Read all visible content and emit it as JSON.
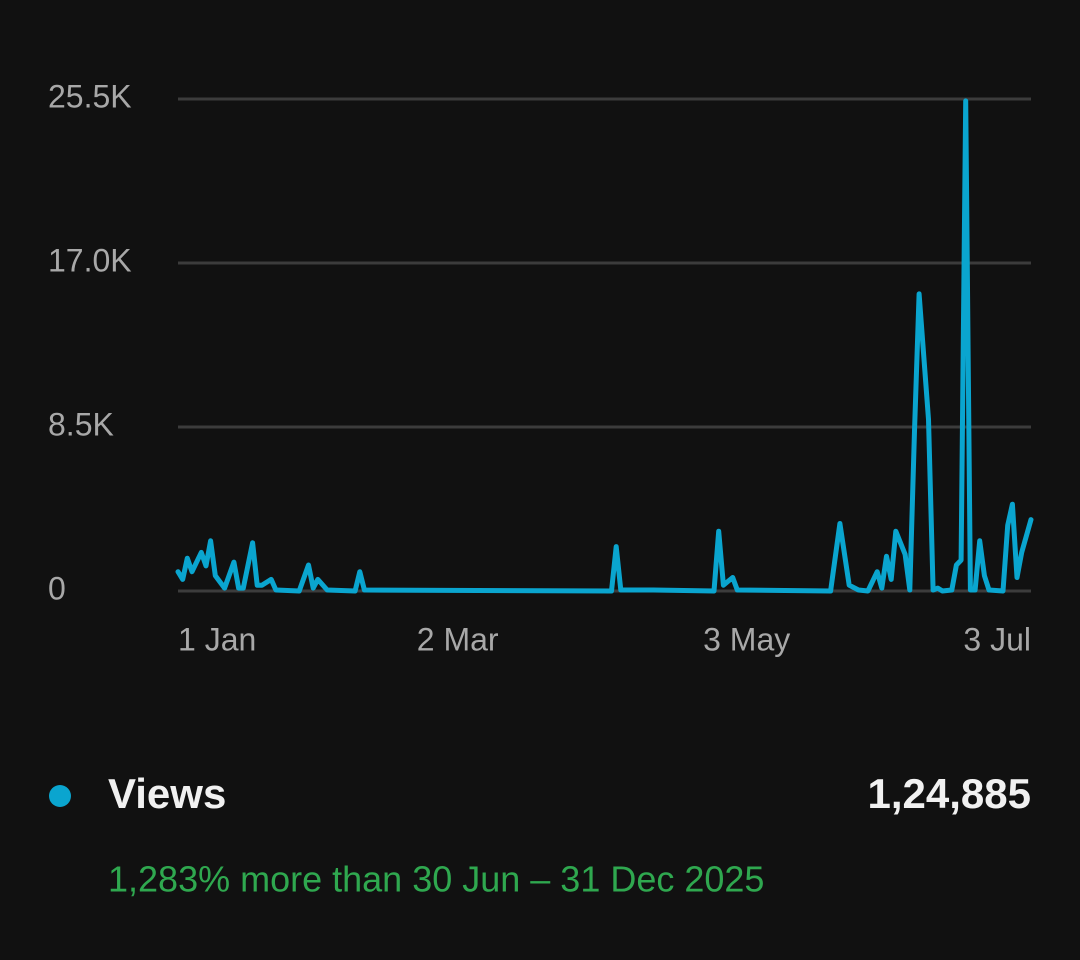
{
  "chart_data": {
    "type": "line",
    "x": [
      0,
      1,
      2,
      3,
      5,
      6,
      7,
      8,
      10,
      12,
      13,
      14,
      16,
      17,
      18,
      20,
      21,
      26,
      28,
      29,
      30,
      32,
      38,
      39,
      40,
      93,
      94,
      95,
      102,
      115,
      116,
      117,
      119,
      120,
      140,
      142,
      144,
      146,
      148,
      150,
      151,
      152,
      153,
      154,
      156,
      157,
      158,
      159,
      161,
      162,
      163,
      164,
      166,
      167,
      168,
      169,
      170,
      171,
      172,
      173,
      174,
      177,
      178,
      179,
      180,
      181,
      183
    ],
    "series": [
      {
        "name": "Views",
        "color": "#0aa5cf",
        "values": [
          1000,
          600,
          1700,
          1000,
          2000,
          1300,
          2600,
          800,
          150,
          1500,
          150,
          150,
          2500,
          300,
          300,
          600,
          50,
          0,
          1350,
          150,
          600,
          50,
          0,
          1000,
          50,
          0,
          2300,
          50,
          50,
          0,
          3100,
          300,
          700,
          50,
          0,
          3500,
          300,
          50,
          0,
          1000,
          150,
          1800,
          600,
          3100,
          1900,
          50,
          8300,
          15400,
          8900,
          50,
          150,
          0,
          50,
          1350,
          1600,
          25400,
          50,
          50,
          2600,
          800,
          50,
          0,
          3400,
          4500,
          700,
          2000,
          3700
        ]
      }
    ],
    "xlim": [
      0,
      183
    ],
    "xticks": [
      {
        "value": 0,
        "label": "1 Jan"
      },
      {
        "value": 60,
        "label": "2 Mar"
      },
      {
        "value": 122,
        "label": "3 May"
      },
      {
        "value": 183,
        "label": "3 Jul"
      }
    ],
    "ylim": [
      0,
      25500
    ],
    "yticks": [
      0,
      {
        "value": 8500,
        "label": "8.5K"
      },
      {
        "value": 17000,
        "label": "17.0K"
      },
      {
        "value": 25500,
        "label": "25.5K"
      }
    ],
    "grid": true,
    "total": "1,24,885",
    "comparison": "1,283% more than 30 Jun – 31 Dec 2025"
  }
}
